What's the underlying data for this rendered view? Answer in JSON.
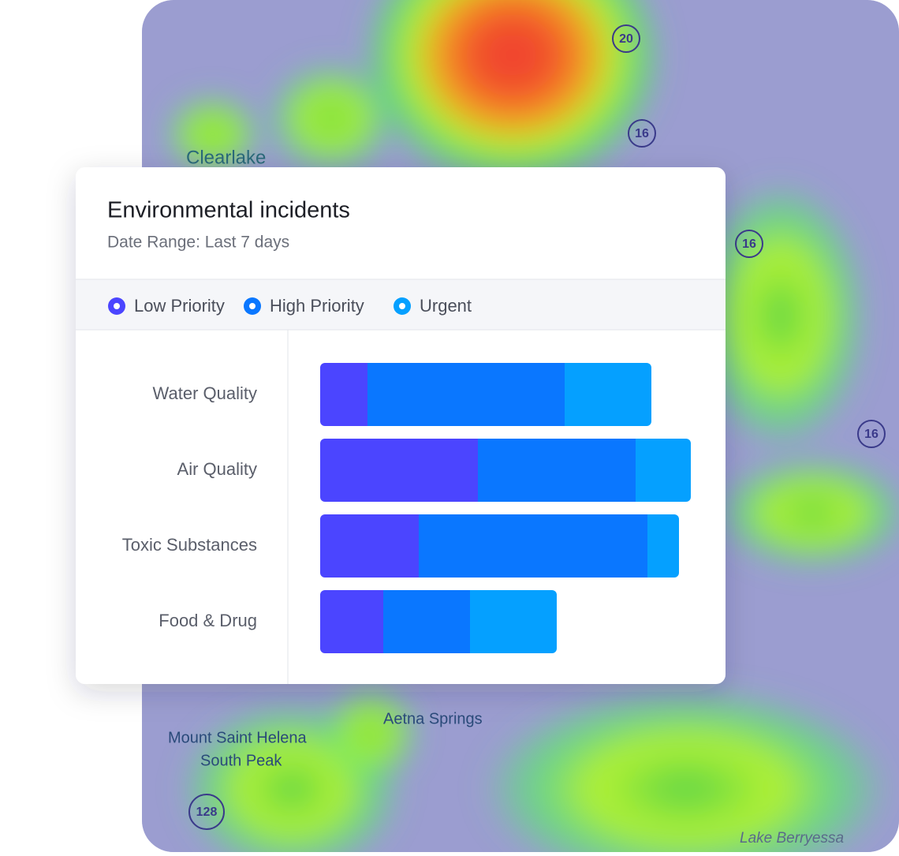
{
  "chart_data": {
    "type": "stacked-barh",
    "title": "Environmental incidents",
    "subtitle": "Date Range: Last 7 days",
    "categories": [
      "Water Quality",
      "Air Quality",
      "Toxic Substances",
      "Food & Drug"
    ],
    "series": [
      {
        "name": "Low Priority",
        "color": "#4b45ff",
        "values": [
          6,
          20,
          12.5,
          8
        ]
      },
      {
        "name": "High Priority",
        "color": "#0a77ff",
        "values": [
          25,
          20,
          29,
          11
        ]
      },
      {
        "name": "Urgent",
        "color": "#05a0ff",
        "values": [
          11,
          7,
          4,
          11
        ]
      }
    ],
    "xlim": [
      0,
      48
    ]
  },
  "map": {
    "places": [
      "Clearlake",
      "Aetna Springs",
      "Mount Saint Helena",
      "South Peak",
      "Lake Berryessa"
    ],
    "routes": [
      "20",
      "16",
      "16",
      "16",
      "128"
    ]
  }
}
